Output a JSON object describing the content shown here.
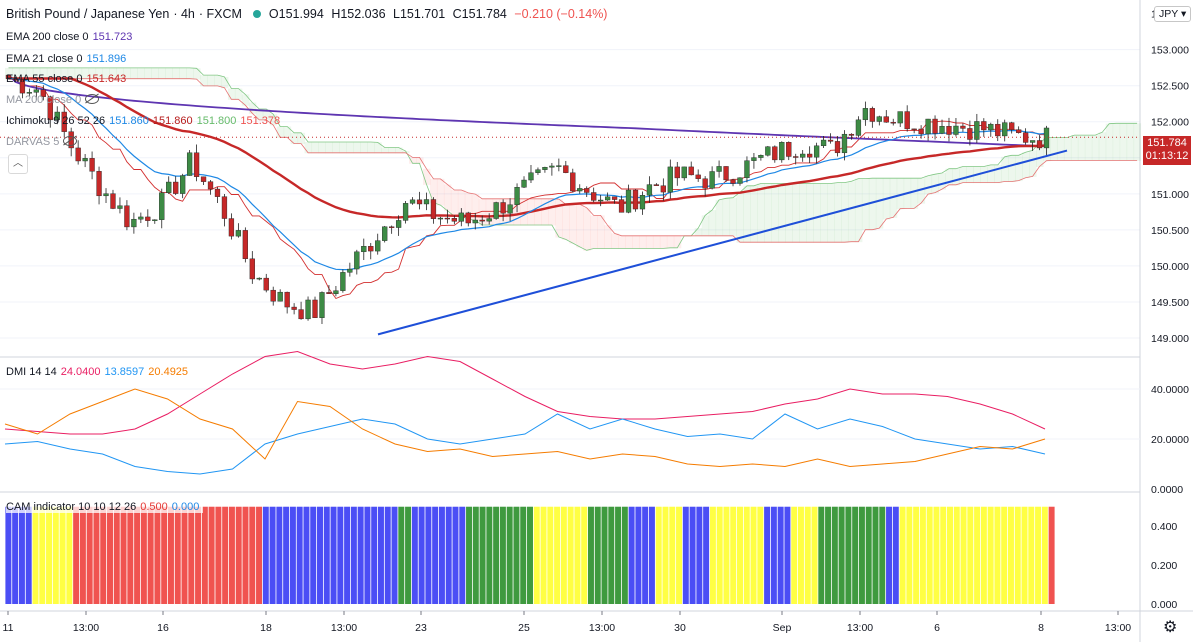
{
  "header": {
    "symbol": "British Pound / Japanese Yen",
    "interval": "4h",
    "source": "FXCM",
    "open": "O151.994",
    "high": "H152.036",
    "low": "L151.701",
    "close": "C151.784",
    "change": "−0.210 (−0.14%)"
  },
  "currency_badge": "JPY",
  "current_price": "151.784",
  "countdown": "01:13:12",
  "legends": {
    "ema200": {
      "label": "EMA 200 close 0",
      "value": "151.723",
      "color": "#5e35b1"
    },
    "ema21": {
      "label": "EMA 21 close 0",
      "value": "151.896",
      "color": "#1e88e5"
    },
    "ema55": {
      "label": "EMA 55 close 0",
      "value": "151.643",
      "color": "#c62828"
    },
    "ma200": {
      "label": "MA 200 close 0"
    },
    "ichimoku": {
      "label": "Ichimoku 9 26 52 26",
      "v1": "151.860",
      "v2": "151.860",
      "v3": "151.800",
      "v4": "151.378"
    },
    "darvas": {
      "label": "DARVAS 5"
    },
    "dmi": {
      "label": "DMI 14 14",
      "v1": "24.0400",
      "v2": "13.8597",
      "v3": "20.4925"
    },
    "cam": {
      "label": "CAM indicator 10 10 12 26",
      "v1": "0.500",
      "v2": "0.000"
    }
  },
  "chart_data": [
    {
      "type": "candlestick",
      "title": "British Pound / Japanese Yen · 4h · FXCM",
      "ylim": [
        148.8,
        153.5
      ],
      "y_ticks": [
        "149.000",
        "149.500",
        "150.000",
        "150.500",
        "151.000",
        "151.500",
        "152.000",
        "152.500",
        "153.000",
        "153.500"
      ],
      "x_ticks": [
        "11",
        "13:00",
        "16",
        "18",
        "13:00",
        "23",
        "25",
        "13:00",
        "30",
        "Sep",
        "13:00",
        "6",
        "8",
        "13:00"
      ],
      "close_path": [
        152.6,
        152.45,
        151.7,
        151.1,
        150.6,
        150.85,
        151.45,
        150.8,
        149.9,
        149.5,
        149.35,
        149.9,
        150.4,
        150.9,
        150.7,
        150.6,
        150.8,
        151.1,
        151.35,
        151.05,
        150.8,
        151.1,
        151.25,
        151.2,
        151.35,
        151.55,
        151.7,
        151.6,
        152.2,
        152.05,
        152.0,
        151.95,
        151.9,
        151.8,
        151.78
      ],
      "series": [
        {
          "name": "EMA 200",
          "start": 152.65,
          "end": 151.72
        },
        {
          "name": "EMA 55",
          "start": 152.6,
          "end": 151.64
        },
        {
          "name": "Trend line",
          "from": 149.05,
          "to": 151.6
        }
      ]
    },
    {
      "type": "line",
      "title": "DMI 14 14",
      "ylim": [
        0,
        50
      ],
      "y_ticks": [
        "0.0000",
        "20.0000",
        "40.0000"
      ],
      "series": [
        {
          "name": "ADX",
          "color": "#e91e63",
          "values": [
            24,
            23,
            22,
            22,
            24,
            30,
            38,
            46,
            53,
            55,
            50,
            48,
            50,
            53,
            51,
            44,
            37,
            31,
            29,
            28,
            28,
            29,
            30,
            31,
            34,
            36,
            40,
            38,
            38,
            37,
            34,
            30,
            24
          ]
        },
        {
          "name": "+DI",
          "color": "#2196f3",
          "values": [
            18,
            19,
            16,
            14,
            9,
            7,
            6,
            8,
            18,
            22,
            25,
            28,
            26,
            20,
            18,
            20,
            22,
            30,
            24,
            28,
            24,
            21,
            22,
            20,
            30,
            24,
            28,
            25,
            20,
            18,
            16,
            17,
            14
          ]
        },
        {
          "name": "−DI",
          "color": "#f57c00",
          "values": [
            26,
            22,
            30,
            35,
            40,
            36,
            28,
            24,
            12,
            35,
            33,
            24,
            18,
            15,
            16,
            13,
            14,
            15,
            12,
            14,
            13,
            10,
            9,
            10,
            9,
            12,
            9,
            10,
            11,
            14,
            17,
            16,
            20
          ]
        }
      ]
    },
    {
      "type": "bar",
      "title": "CAM indicator",
      "ylim": [
        0,
        0.55
      ],
      "y_ticks": [
        "0.000",
        "0.200",
        "0.400"
      ],
      "color_runs": [
        {
          "color": "blue",
          "count": 4
        },
        {
          "color": "yellow",
          "count": 6
        },
        {
          "color": "red",
          "count": 28
        },
        {
          "color": "blue",
          "count": 20
        },
        {
          "color": "green",
          "count": 2
        },
        {
          "color": "blue",
          "count": 8
        },
        {
          "color": "green",
          "count": 10
        },
        {
          "color": "yellow",
          "count": 8
        },
        {
          "color": "green",
          "count": 6
        },
        {
          "color": "blue",
          "count": 4
        },
        {
          "color": "yellow",
          "count": 4
        },
        {
          "color": "blue",
          "count": 4
        },
        {
          "color": "yellow",
          "count": 8
        },
        {
          "color": "blue",
          "count": 4
        },
        {
          "color": "yellow",
          "count": 4
        },
        {
          "color": "green",
          "count": 10
        },
        {
          "color": "blue",
          "count": 2
        },
        {
          "color": "yellow",
          "count": 22
        },
        {
          "color": "red",
          "count": 1
        }
      ]
    }
  ]
}
